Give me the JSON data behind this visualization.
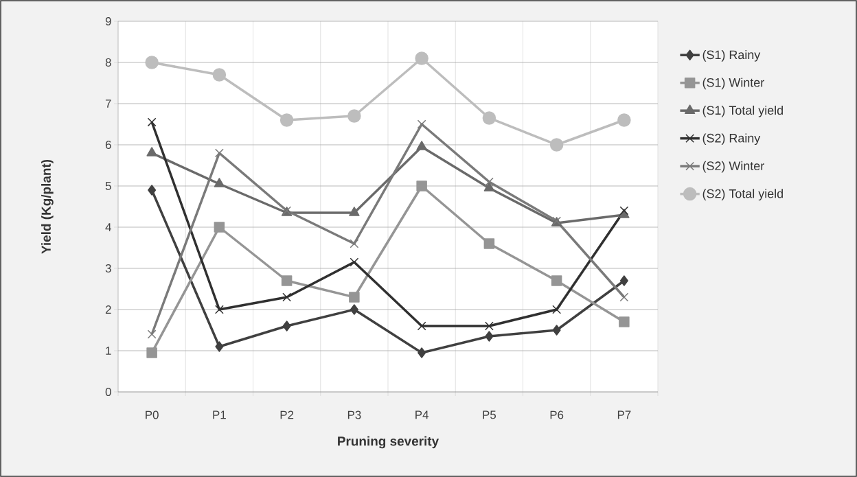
{
  "chart_data": {
    "type": "line",
    "xlabel": "Pruning severity",
    "ylabel": "Yield (Kg/plant)",
    "categories": [
      "P0",
      "P1",
      "P2",
      "P3",
      "P4",
      "P5",
      "P6",
      "P7"
    ],
    "ylim": [
      0,
      9
    ],
    "yticks": [
      0,
      1,
      2,
      3,
      4,
      5,
      6,
      7,
      8,
      9
    ],
    "grid": true,
    "legend": "right",
    "line_style": "solid",
    "series": [
      {
        "name": "(S1) Rainy",
        "color": "#404040",
        "marker": "diamond",
        "values": [
          4.9,
          1.1,
          1.6,
          2.0,
          0.95,
          1.35,
          1.5,
          2.7
        ]
      },
      {
        "name": "(S1) Winter",
        "color": "#959595",
        "marker": "square",
        "values": [
          0.95,
          4.0,
          2.7,
          2.3,
          5.0,
          3.6,
          2.7,
          1.7
        ]
      },
      {
        "name": "(S1) Total yield",
        "color": "#6a6a6a",
        "marker": "triangle",
        "values": [
          5.8,
          5.05,
          4.35,
          4.35,
          5.95,
          4.95,
          4.1,
          4.3
        ]
      },
      {
        "name": "(S2) Rainy",
        "color": "#303030",
        "marker": "cross",
        "values": [
          6.55,
          2.0,
          2.3,
          3.15,
          1.6,
          1.6,
          2.0,
          4.4
        ]
      },
      {
        "name": "(S2) Winter",
        "color": "#7a7a7a",
        "marker": "cross",
        "values": [
          1.4,
          5.8,
          4.4,
          3.6,
          6.5,
          5.1,
          4.15,
          2.3
        ]
      },
      {
        "name": "(S2) Total yield",
        "color": "#bdbdbd",
        "marker": "circle",
        "values": [
          8.0,
          7.7,
          6.6,
          6.7,
          8.1,
          6.65,
          6.0,
          6.6
        ]
      }
    ]
  }
}
